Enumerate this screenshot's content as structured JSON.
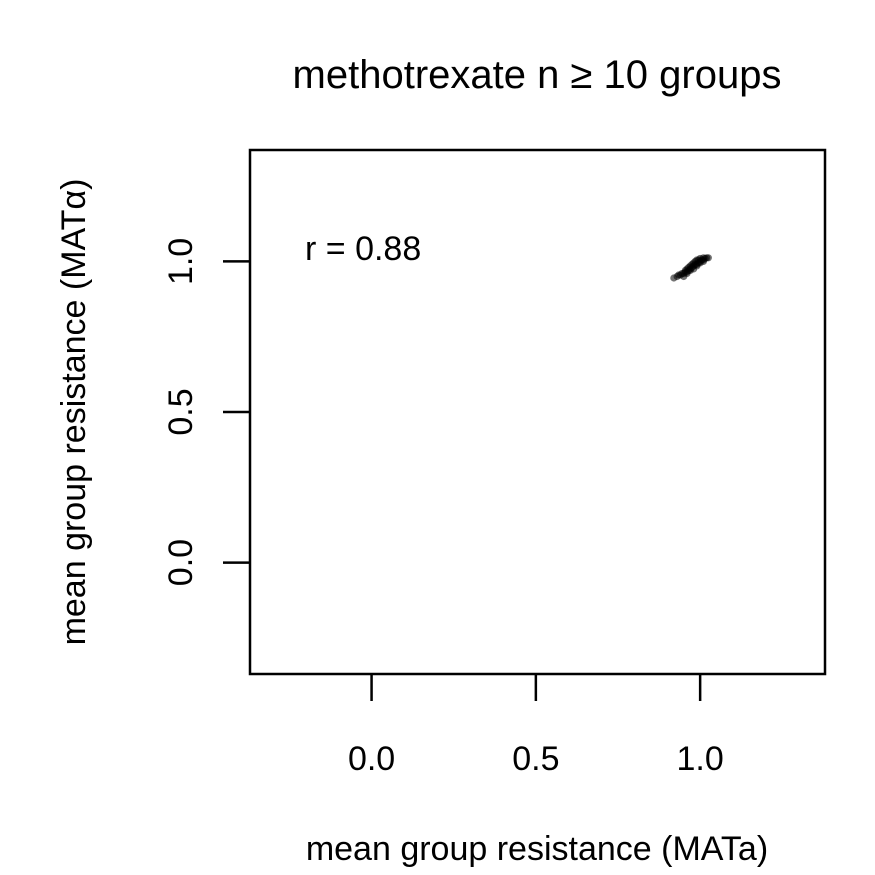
{
  "chart_data": {
    "type": "scatter",
    "title": "methotrexate n ≥ 10 groups",
    "xlabel": "mean group resistance (MATa)",
    "ylabel": "mean group resistance (MATα)",
    "xlim": [
      -0.37,
      1.38
    ],
    "ylim": [
      -0.37,
      1.37
    ],
    "xticks": [
      0.0,
      0.5,
      1.0
    ],
    "yticks": [
      0.0,
      0.5,
      1.0
    ],
    "xtick_labels": [
      "0.0",
      "0.5",
      "1.0"
    ],
    "ytick_labels": [
      "0.0",
      "0.5",
      "1.0"
    ],
    "annotation": "r = 0.88",
    "grid": false,
    "legend": "none",
    "point_color": "#000000",
    "series": [
      {
        "x": [
          0.92,
          0.93,
          0.935,
          0.94,
          0.945,
          0.95,
          0.955,
          0.955,
          0.96,
          0.96,
          0.965,
          0.965,
          0.97,
          0.97,
          0.975,
          0.975,
          0.98,
          0.98,
          0.985,
          0.985,
          0.99,
          0.99,
          0.995,
          0.995,
          1.0,
          1.0,
          1.005,
          1.01,
          1.01,
          1.015,
          1.02,
          1.025,
          0.95,
          0.96,
          0.97,
          0.98,
          0.99,
          1.0,
          1.01
        ],
        "y": [
          0.945,
          0.95,
          0.955,
          0.955,
          0.96,
          0.96,
          0.965,
          0.97,
          0.965,
          0.975,
          0.97,
          0.98,
          0.975,
          0.985,
          0.98,
          0.99,
          0.985,
          0.995,
          0.99,
          1.0,
          0.99,
          1.005,
          0.995,
          1.005,
          1.0,
          1.01,
          1.005,
          1.005,
          1.012,
          1.01,
          1.012,
          1.012,
          0.95,
          0.96,
          0.97,
          0.975,
          0.985,
          0.995,
          1.0
        ]
      }
    ]
  }
}
